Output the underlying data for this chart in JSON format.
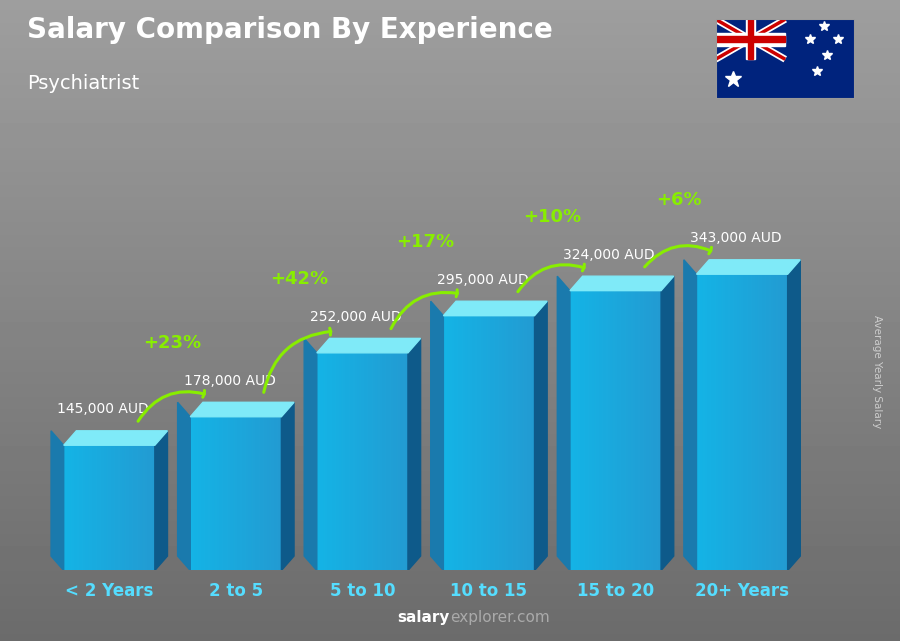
{
  "title": "Salary Comparison By Experience",
  "subtitle": "Psychiatrist",
  "categories": [
    "< 2 Years",
    "2 to 5",
    "5 to 10",
    "10 to 15",
    "15 to 20",
    "20+ Years"
  ],
  "values": [
    145000,
    178000,
    252000,
    295000,
    324000,
    343000
  ],
  "labels": [
    "145,000 AUD",
    "178,000 AUD",
    "252,000 AUD",
    "295,000 AUD",
    "324,000 AUD",
    "343,000 AUD"
  ],
  "pct_changes": [
    "+23%",
    "+42%",
    "+17%",
    "+10%",
    "+6%"
  ],
  "bar_front_color": "#29b8e8",
  "bar_left_color": "#1a7aad",
  "bar_top_color": "#7fe0f8",
  "bar_right_color": "#0e5a8a",
  "bg_color_top": "#888888",
  "bg_color_bottom": "#555555",
  "title_color": "#ffffff",
  "subtitle_color": "#ffffff",
  "label_color": "#ffffff",
  "pct_color": "#88ee00",
  "xlabel_color": "#55ddff",
  "watermark_color": "#aaaaaa",
  "watermark_bold_color": "#ffffff",
  "watermark": "salaryexplorer.com",
  "ylabel_text": "Average Yearly Salary",
  "ylabel_color": "#cccccc",
  "arrow_color": "#88ee00"
}
